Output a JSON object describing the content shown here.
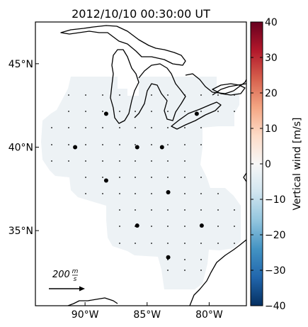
{
  "title": "2012/10/10 00:30:00 UT",
  "map": {
    "lat_labels": [
      {
        "lat": 45,
        "text": "45°N"
      },
      {
        "lat": 40,
        "text": "40°N"
      },
      {
        "lat": 35,
        "text": "35°N"
      }
    ],
    "lon_labels": [
      {
        "lon": -90,
        "text": "90°W"
      },
      {
        "lon": -85,
        "text": "85°W"
      },
      {
        "lon": -80,
        "text": "80°W"
      }
    ],
    "extent": {
      "lon": [
        -94,
        -77
      ],
      "lat": [
        30.5,
        47.5
      ]
    },
    "scale_arrow": {
      "value": "200",
      "unit_num": "m",
      "unit_den": "s"
    },
    "measurement_points": [
      {
        "lon": -88.3,
        "lat": 42.0
      },
      {
        "lon": -81.0,
        "lat": 42.0
      },
      {
        "lon": -90.8,
        "lat": 40.0
      },
      {
        "lon": -85.8,
        "lat": 40.0
      },
      {
        "lon": -83.8,
        "lat": 40.0
      },
      {
        "lon": -88.3,
        "lat": 38.0
      },
      {
        "lon": -83.3,
        "lat": 37.3
      },
      {
        "lon": -85.8,
        "lat": 35.3
      },
      {
        "lon": -80.6,
        "lat": 35.3
      },
      {
        "lon": -83.3,
        "lat": 33.4
      }
    ],
    "land_color": "#ffffff",
    "coverage_color": "#edf2f5",
    "coast_color": "#000000"
  },
  "colorbar": {
    "label": "Vertical wind [m/s]",
    "ticks": [
      {
        "value": 40,
        "text": "40"
      },
      {
        "value": 30,
        "text": "30"
      },
      {
        "value": 20,
        "text": "20"
      },
      {
        "value": 10,
        "text": "10"
      },
      {
        "value": 0,
        "text": "0"
      },
      {
        "value": -10,
        "text": "−10"
      },
      {
        "value": -20,
        "text": "−20"
      },
      {
        "value": -30,
        "text": "−30"
      },
      {
        "value": -40,
        "text": "−40"
      }
    ],
    "range": [
      -40,
      40
    ],
    "colormap": [
      "#053061",
      "#2166ac",
      "#4393c3",
      "#92c5de",
      "#d1e5f0",
      "#f7f7f7",
      "#fddbc7",
      "#f4a582",
      "#d6604d",
      "#b2182b",
      "#67001f"
    ]
  }
}
